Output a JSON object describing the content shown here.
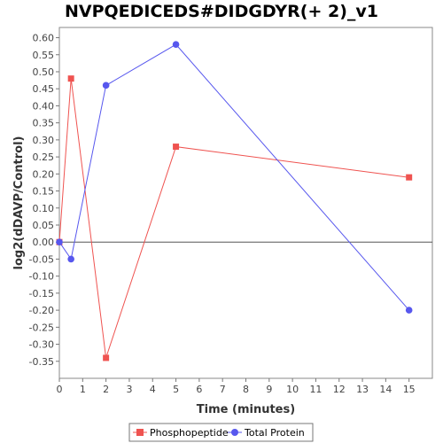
{
  "chart_data": {
    "type": "line",
    "title": "NVPQEDICEDS#DIDGDYR(+ 2)_v1",
    "xlabel": "Time (minutes)",
    "ylabel": "log2(dDAVP/Control)",
    "xlim": [
      0,
      16
    ],
    "ylim": [
      -0.4,
      0.63
    ],
    "x_ticks": [
      0,
      1,
      2,
      3,
      4,
      5,
      6,
      7,
      8,
      9,
      10,
      11,
      12,
      13,
      14,
      15
    ],
    "y_ticks": [
      -0.35,
      -0.3,
      -0.25,
      -0.2,
      -0.15,
      -0.1,
      -0.05,
      0.0,
      0.05,
      0.1,
      0.15,
      0.2,
      0.25,
      0.3,
      0.35,
      0.4,
      0.45,
      0.5,
      0.55,
      0.6
    ],
    "y_tick_labels": [
      "-0.35",
      "-0.30",
      "-0.25",
      "-0.20",
      "-0.15",
      "-0.10",
      "-0.05",
      "0.00",
      "0.05",
      "0.10",
      "0.15",
      "0.20",
      "0.25",
      "0.30",
      "0.35",
      "0.40",
      "0.45",
      "0.50",
      "0.55",
      "0.60"
    ],
    "zero_line": true,
    "grid": false,
    "legend_position": "bottom",
    "series": [
      {
        "name": "Phosphopeptide",
        "color": "#ef5350",
        "marker": "square",
        "x": [
          0,
          0.5,
          2,
          5,
          15
        ],
        "y": [
          0.0,
          0.48,
          -0.34,
          0.28,
          0.19
        ]
      },
      {
        "name": "Total Protein",
        "color": "#5757ee",
        "marker": "circle",
        "x": [
          0,
          0.5,
          2,
          5,
          15
        ],
        "y": [
          0.0,
          -0.05,
          0.46,
          0.58,
          -0.2
        ]
      }
    ]
  }
}
